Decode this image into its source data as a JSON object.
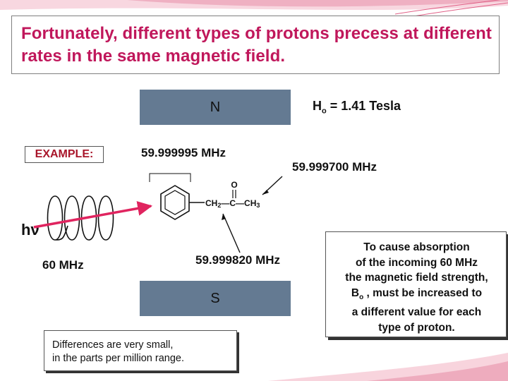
{
  "title": "Fortunately, different types of protons precess at different rates in the same magnetic field.",
  "magnet": {
    "north_label": "N",
    "south_label": "S"
  },
  "field": {
    "symbol": "H",
    "subscript": "o",
    "value_text": " = 1.41 Tesla"
  },
  "example_label": "EXAMPLE:",
  "frequencies": {
    "aromatic": "59.999995 MHz",
    "methyl": "59.999700 MHz",
    "methylene": "59.999820 MHz",
    "incoming": "60 MHz"
  },
  "photon_label": "hν",
  "molecule": {
    "o_label": "O",
    "ch2": "CH",
    "ch2_sub": "2",
    "c_label": "C",
    "ch3": "CH",
    "ch3_sub": "3"
  },
  "note": {
    "line1": "To cause absorption",
    "line2": "of the incoming 60 MHz",
    "line3": "the magnetic field strength,",
    "line4_symbol": "B",
    "line4_sub": "o",
    "line4_rest": " , must be increased to",
    "line5": "a different value for each",
    "line6": "type of proton."
  },
  "differences": {
    "line1": "Differences are very small,",
    "line2": "in the parts per million range."
  },
  "colors": {
    "title": "#c0175b",
    "magnet": "#647a92",
    "arrow": "#e0245f",
    "example": "#a8152a"
  }
}
